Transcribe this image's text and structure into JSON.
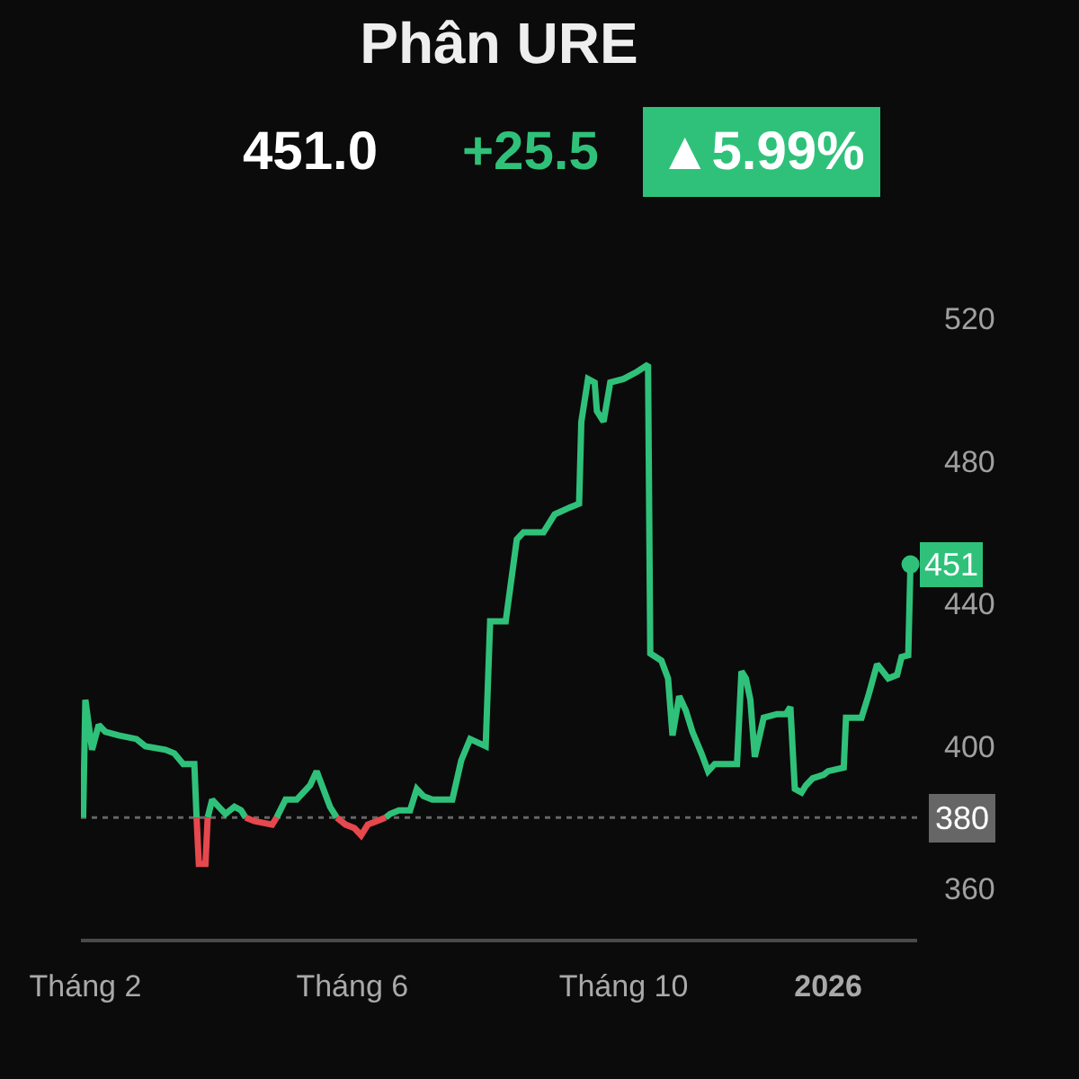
{
  "chart_data": {
    "type": "line",
    "title": "Phân URE",
    "annotations": [
      "451.0",
      "+25.5",
      "▲5.99%"
    ],
    "x": [
      "2025-01-31",
      "2025-02-01",
      "2025-02-04",
      "2025-02-07",
      "2025-02-10",
      "2025-02-16",
      "2025-02-24",
      "2025-02-28",
      "2025-03-09",
      "2025-03-13",
      "2025-03-17",
      "2025-03-22",
      "2025-03-23",
      "2025-03-24",
      "2025-03-27",
      "2025-03-28",
      "2025-03-30",
      "2025-04-02",
      "2025-04-05",
      "2025-04-09",
      "2025-04-12",
      "2025-04-14",
      "2025-04-18",
      "2025-04-26",
      "2025-04-28",
      "2025-05-02",
      "2025-05-07",
      "2025-05-13",
      "2025-05-16",
      "2025-05-19",
      "2025-05-22",
      "2025-05-25",
      "2025-05-29",
      "2025-06-02",
      "2025-06-05",
      "2025-06-08",
      "2025-06-12",
      "2025-06-16",
      "2025-06-18",
      "2025-06-22",
      "2025-06-27",
      "2025-06-30",
      "2025-07-03",
      "2025-07-07",
      "2025-07-16",
      "2025-07-20",
      "2025-07-24",
      "2025-07-31",
      "2025-08-02",
      "2025-08-09",
      "2025-08-14",
      "2025-08-17",
      "2025-08-26",
      "2025-08-31",
      "2025-09-07",
      "2025-09-11",
      "2025-09-12",
      "2025-09-15",
      "2025-09-18",
      "2025-09-19",
      "2025-09-22",
      "2025-09-25",
      "2025-10-01",
      "2025-10-07",
      "2025-10-12",
      "2025-10-13",
      "2025-10-18",
      "2025-10-21",
      "2025-10-23",
      "2025-10-26",
      "2025-10-29",
      "2025-11-01",
      "2025-11-05",
      "2025-11-08",
      "2025-11-11",
      "2025-11-21",
      "2025-11-23",
      "2025-11-25",
      "2025-11-27",
      "2025-11-29",
      "2025-12-03",
      "2025-12-09",
      "2025-12-13",
      "2025-12-15",
      "2025-12-17",
      "2025-12-20",
      "2025-12-22",
      "2025-12-25",
      "2025-12-30",
      "2026-01-01",
      "2026-01-08",
      "2026-01-09",
      "2026-01-16",
      "2026-01-19",
      "2026-01-23",
      "2026-01-28",
      "2026-02-01",
      "2026-02-03",
      "2026-02-06",
      "2026-02-07"
    ],
    "series": [
      {
        "color": "#2fc17a",
        "values": [
          380,
          413,
          399,
          406,
          404,
          403,
          402,
          400,
          399,
          398,
          395,
          395,
          380,
          null,
          null,
          380,
          385,
          383,
          381,
          383,
          382,
          380,
          null,
          null,
          380,
          385,
          385,
          389,
          393,
          388,
          383,
          380,
          null,
          null,
          null,
          null,
          null,
          380,
          381,
          382,
          382,
          388,
          386,
          385,
          385,
          396,
          402,
          400,
          435,
          435,
          458,
          460,
          460,
          465,
          467,
          468,
          491,
          503,
          502,
          494,
          491,
          502,
          503,
          505,
          507,
          426,
          424,
          419,
          403,
          414,
          410,
          404,
          398,
          393,
          395,
          395,
          421,
          419,
          413,
          397,
          408,
          409,
          409,
          411,
          388,
          387,
          389,
          391,
          392,
          393,
          394,
          408,
          408,
          414,
          423,
          419,
          420,
          425,
          425.5,
          451
        ],
        "value_labels": [
          null,
          null,
          null,
          null,
          null,
          null,
          null,
          null,
          null,
          null,
          null,
          null,
          null,
          null,
          null,
          null,
          null,
          null,
          null,
          null,
          null,
          null,
          null,
          null,
          null,
          null,
          null,
          null,
          null,
          null,
          null,
          null,
          null,
          null,
          null,
          null,
          null,
          null,
          null,
          null,
          null,
          null,
          null,
          null,
          null,
          null,
          null,
          null,
          null,
          null,
          null,
          null,
          null,
          null,
          null,
          null,
          null,
          null,
          null,
          null,
          null,
          null,
          null,
          null,
          null,
          null,
          null,
          null,
          null,
          null,
          null,
          null,
          null,
          null,
          null,
          null,
          null,
          null,
          null,
          null,
          null,
          null,
          null,
          null,
          null,
          null,
          null,
          null,
          null,
          null,
          null,
          null,
          null,
          null,
          null,
          null,
          null,
          null,
          null,
          "451"
        ]
      },
      {
        "color": "#e5484d",
        "values": [
          null,
          null,
          null,
          null,
          null,
          null,
          null,
          null,
          null,
          null,
          null,
          null,
          380,
          367,
          367,
          380,
          null,
          null,
          null,
          null,
          null,
          380,
          379,
          378,
          380,
          null,
          null,
          null,
          null,
          null,
          null,
          380,
          378,
          377,
          375,
          378,
          379,
          380,
          null,
          null,
          null,
          null,
          null,
          null,
          null,
          null,
          null,
          null,
          null,
          null,
          null,
          null,
          null,
          null,
          null,
          null,
          null,
          null,
          null,
          null,
          null,
          null,
          null,
          null,
          null,
          null,
          null,
          null,
          null,
          null,
          null,
          null,
          null,
          null,
          null,
          null,
          null,
          null,
          null,
          null,
          null,
          null,
          null,
          null,
          null,
          null,
          null,
          null,
          null,
          null,
          null,
          null,
          null,
          null,
          null,
          null,
          null,
          null,
          null,
          null
        ]
      }
    ],
    "xlim": [
      "2025-01-30",
      "2026-02-10"
    ],
    "xticks": [
      {
        "value": "2025-02-01",
        "label": "Tháng 2"
      },
      {
        "value": "2025-06-01",
        "label": "Tháng 6"
      },
      {
        "value": "2025-10-01",
        "label": "Tháng 10"
      },
      {
        "value": "2026-01-01",
        "label": "2026"
      }
    ],
    "ylim": [
      346,
      520
    ],
    "yticks": [
      360,
      400,
      440,
      480,
      520
    ],
    "ref_lines": [
      {
        "axis": "y",
        "value": 380,
        "label": "380",
        "color": "#666666",
        "line_style": "dotted"
      }
    ]
  }
}
